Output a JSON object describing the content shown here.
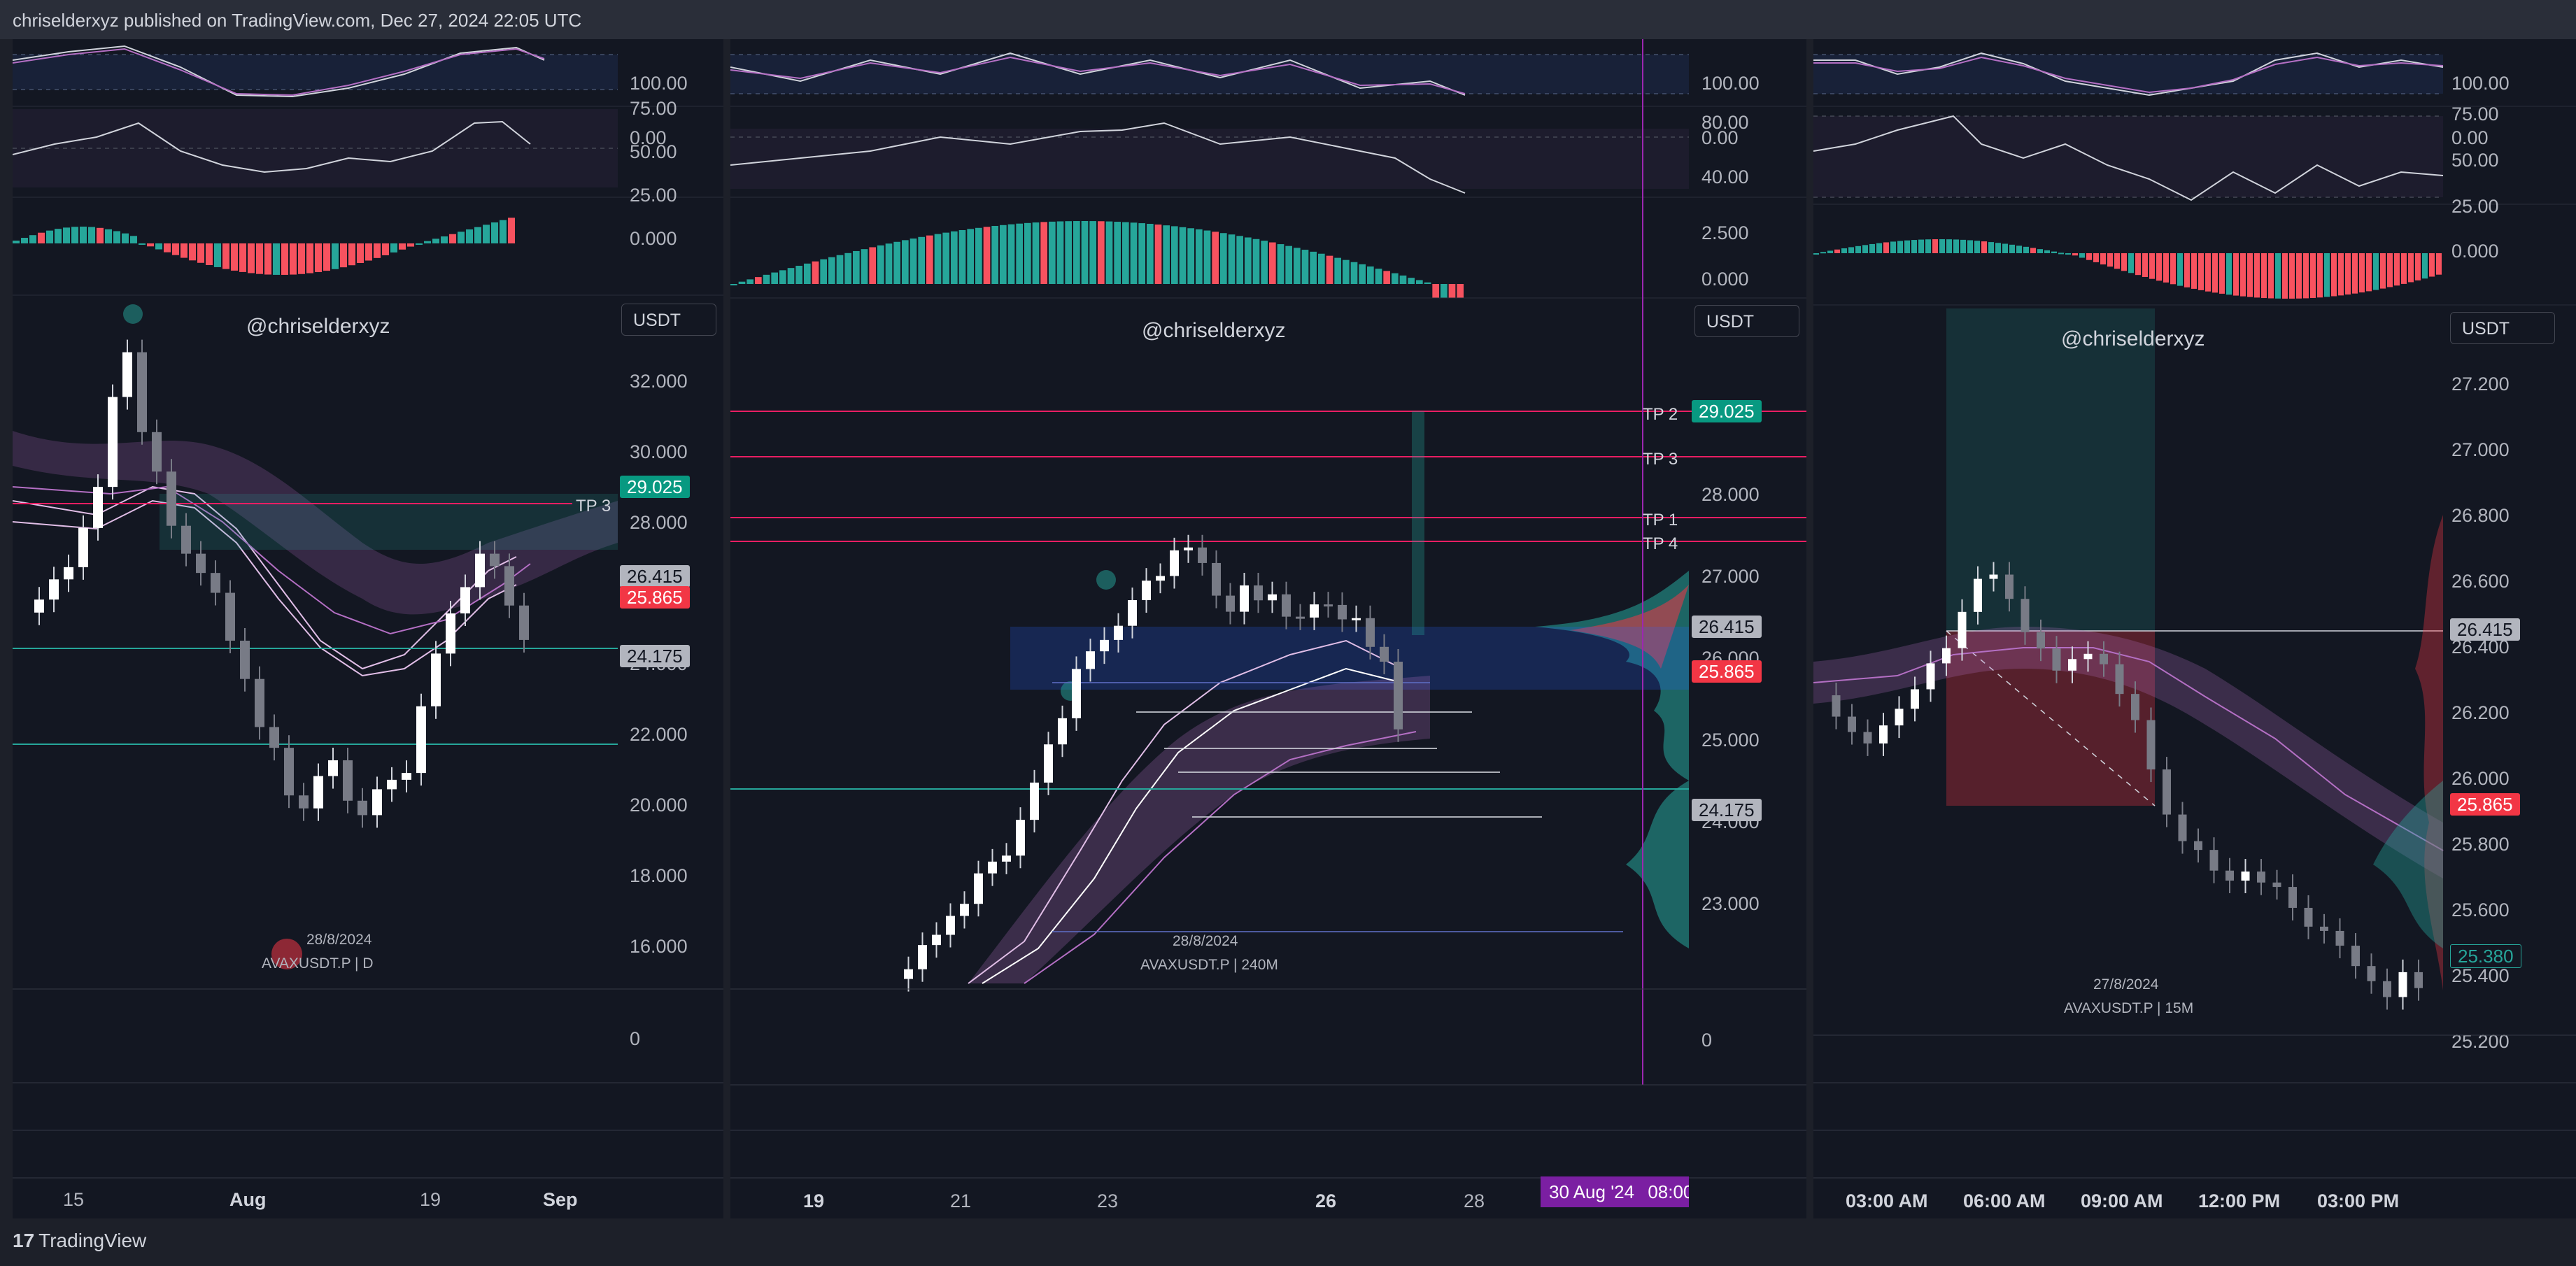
{
  "header": {
    "publish_text": "chriselderxyz published on TradingView.com, Dec 27, 2024 22:05 UTC"
  },
  "footer": {
    "logo_text": "TradingView"
  },
  "colors": {
    "bull": "#26a69a",
    "bear": "#f7525f",
    "teal": "#089981",
    "red": "#f23645",
    "ema": "#b46fc4",
    "bg": "#131722"
  },
  "panels": [
    {
      "watermark": "@chriselderxyz",
      "currency": "USDT",
      "date_label": "28/8/2024",
      "symbol_label": "AVAXUSDT.P | D",
      "osc1_ticks": [
        "100.00",
        "0.00"
      ],
      "osc2_ticks": [
        "75.00",
        "50.00",
        "25.00"
      ],
      "osc3_ticks": [
        "0.000"
      ],
      "price_ticks": [
        "32.000",
        "30.000",
        "28.000",
        "26.000",
        "24.000",
        "22.000",
        "20.000",
        "18.000",
        "16.000"
      ],
      "volume_tick": "0",
      "tp3_label": "TP 3",
      "tags": [
        "29.025",
        "26.415",
        "25.865",
        "24.175"
      ],
      "time_ticks": [
        "15",
        "Aug",
        "19",
        "Sep"
      ]
    },
    {
      "watermark": "@chriselderxyz",
      "currency": "USDT",
      "date_label": "28/8/2024",
      "symbol_label": "AVAXUSDT.P | 240M",
      "osc1_ticks": [
        "100.00",
        "0.00"
      ],
      "osc2_ticks": [
        "80.00",
        "40.00"
      ],
      "osc3_ticks": [
        "2.500",
        "0.000"
      ],
      "price_ticks": [
        "28.000",
        "27.000",
        "26.000",
        "25.000",
        "24.000",
        "23.000"
      ],
      "volume_tick": "0",
      "tp_labels": [
        "TP 2",
        "TP 3",
        "TP 1",
        "TP 4"
      ],
      "tags": [
        "29.025",
        "26.415",
        "25.865",
        "24.175"
      ],
      "time_ticks": [
        "19",
        "21",
        "23",
        "26",
        "28"
      ],
      "crosshair_date": "30 Aug '24",
      "crosshair_time": "08:00"
    },
    {
      "watermark": "@chriselderxyz",
      "currency": "USDT",
      "date_label": "27/8/2024",
      "symbol_label": "AVAXUSDT.P | 15M",
      "osc1_ticks": [
        "100.00",
        "0.00"
      ],
      "osc2_ticks": [
        "75.00",
        "50.00",
        "25.00"
      ],
      "osc3_ticks": [
        "0.000"
      ],
      "price_ticks": [
        "27.200",
        "27.000",
        "26.800",
        "26.600",
        "26.400",
        "26.200",
        "26.000",
        "25.800",
        "25.600",
        "25.400",
        "25.200"
      ],
      "tags": [
        "26.415",
        "25.865",
        "25.380"
      ],
      "time_ticks": [
        "03:00 AM",
        "06:00 AM",
        "09:00 AM",
        "12:00 PM",
        "03:00 PM"
      ]
    }
  ]
}
